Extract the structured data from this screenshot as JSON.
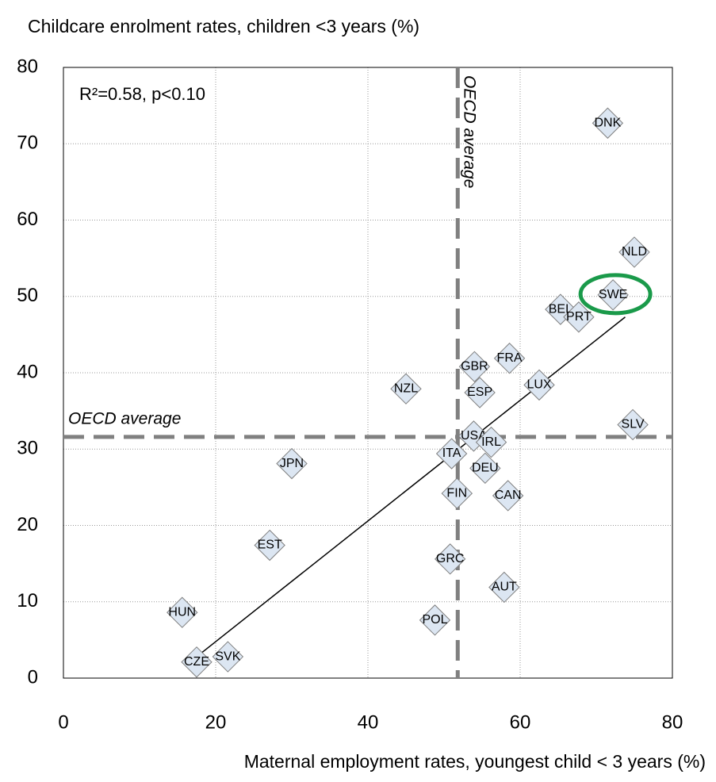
{
  "chart_data": {
    "type": "scatter",
    "y_axis_title": "Childcare enrolment rates, children <3 years (%)",
    "x_axis_title": "Maternal employment rates, youngest child < 3 years (%)",
    "annotation": "R²=0.58, p<0.10",
    "labels": [
      "DNK",
      "NLD",
      "SWE",
      "BEL",
      "PRT",
      "FRA",
      "LUX",
      "GBR",
      "ESP",
      "NZL",
      "SLV",
      "USA",
      "IRL",
      "ITA",
      "DEU",
      "JPN",
      "FIN",
      "CAN",
      "EST",
      "GRC",
      "AUT",
      "POL",
      "HUN",
      "CZE",
      "SVK"
    ],
    "x": [
      71.5,
      75,
      72.2,
      65.3,
      67.7,
      58.6,
      62.5,
      54,
      54.7,
      45,
      74.8,
      53.9,
      56.2,
      51,
      55.4,
      30,
      51.7,
      58.4,
      27.1,
      50.8,
      57.9,
      48.8,
      15.6,
      17.5,
      21.6
    ],
    "values": [
      72.7,
      55.8,
      50.2,
      48.3,
      47.3,
      41.9,
      38.4,
      40.8,
      37.4,
      37.9,
      33.2,
      31.7,
      30.9,
      29.4,
      27.5,
      28.1,
      24.2,
      23.9,
      17.4,
      15.6,
      11.9,
      7.6,
      8.6,
      2.1,
      2.8
    ],
    "color": "#dce6f2",
    "highlight": "SWE",
    "highlight_color": "#1a9a4a",
    "reference_label": "OECD average",
    "oecd_average_x": 51.8,
    "oecd_average_y": 31.6,
    "trend_line": {
      "x": [
        17.5,
        73.8
      ],
      "y": [
        2.8,
        47.3
      ]
    },
    "xlim": [
      0,
      80
    ],
    "xticks": [
      0,
      20,
      40,
      60,
      80
    ],
    "ylim": [
      0,
      80
    ],
    "yticks": [
      0,
      10,
      20,
      30,
      40,
      50,
      60,
      70,
      80
    ],
    "grid": true
  }
}
